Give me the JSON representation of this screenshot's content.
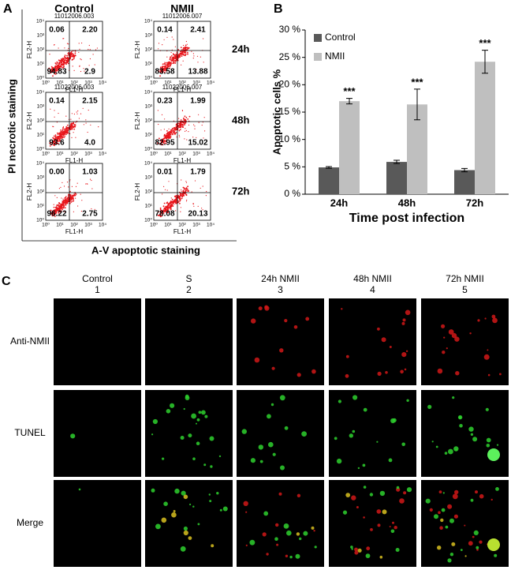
{
  "panel_a": {
    "label": "A",
    "columns": [
      "Control",
      "NMII"
    ],
    "rows": [
      {
        "time": "24h",
        "plots": [
          {
            "header": "11012006.003",
            "quadrants": [
              "0.06",
              "2.20",
              "94.83",
              "2.9"
            ]
          },
          {
            "header": "11012006.007",
            "quadrants": [
              "0.14",
              "2.41",
              "83.58",
              "13.88"
            ]
          }
        ]
      },
      {
        "time": "48h",
        "plots": [
          {
            "header": "11022006.003",
            "quadrants": [
              "0.14",
              "2.15",
              "93.6",
              "4.0"
            ]
          },
          {
            "header": "11022006.007",
            "quadrants": [
              "0.23",
              "1.99",
              "82.95",
              "15.02"
            ]
          }
        ]
      },
      {
        "time": "72h",
        "plots": [
          {
            "quadrants": [
              "0.00",
              "1.03",
              "96.22",
              "2.75"
            ]
          },
          {
            "quadrants": [
              "0.01",
              "1.79",
              "78.08",
              "20.13"
            ]
          }
        ]
      }
    ],
    "plot_y_label": "FL2-H",
    "plot_x_label": "FL1-H",
    "plot_ticks": [
      "10⁰",
      "10¹",
      "10²",
      "10³",
      "10⁴"
    ],
    "y_axis_label": "PI necrotic staining",
    "x_axis_label": "A-V apoptotic staining"
  },
  "chart_data": {
    "type": "bar",
    "panel_label": "B",
    "categories": [
      "24h",
      "48h",
      "72h"
    ],
    "series": [
      {
        "name": "Control",
        "color": "#595959",
        "values": [
          4.9,
          5.9,
          4.4
        ],
        "errors": [
          0.15,
          0.3,
          0.3
        ]
      },
      {
        "name": "NMII",
        "color": "#bfbfbf",
        "values": [
          17.0,
          16.4,
          24.2
        ],
        "errors": [
          0.5,
          2.8,
          2.1
        ],
        "annotations": [
          "***",
          "***",
          "***"
        ]
      }
    ],
    "ylim": [
      0,
      30
    ],
    "yticks": [
      {
        "value": 0,
        "label": "0 %"
      },
      {
        "value": 5,
        "label": "5 %"
      },
      {
        "value": 10,
        "label": "10 %"
      },
      {
        "value": 15,
        "label": "15 %"
      },
      {
        "value": 20,
        "label": "20 %"
      },
      {
        "value": 25,
        "label": "25 %"
      },
      {
        "value": 30,
        "label": "30 %"
      }
    ],
    "y_label": "Apoptotic cells %",
    "x_label": "Time post infection",
    "grid": false,
    "legend": "upper left"
  },
  "panel_c": {
    "label": "C",
    "columns": [
      {
        "name": "Control",
        "number": "1"
      },
      {
        "name": "S",
        "number": "2"
      },
      {
        "name": "24h NMII",
        "number": "3"
      },
      {
        "name": "48h NMII",
        "number": "4"
      },
      {
        "name": "72h NMII",
        "number": "5"
      }
    ],
    "rows": [
      "Anti-NMII",
      "TUNEL",
      "Merge"
    ]
  }
}
